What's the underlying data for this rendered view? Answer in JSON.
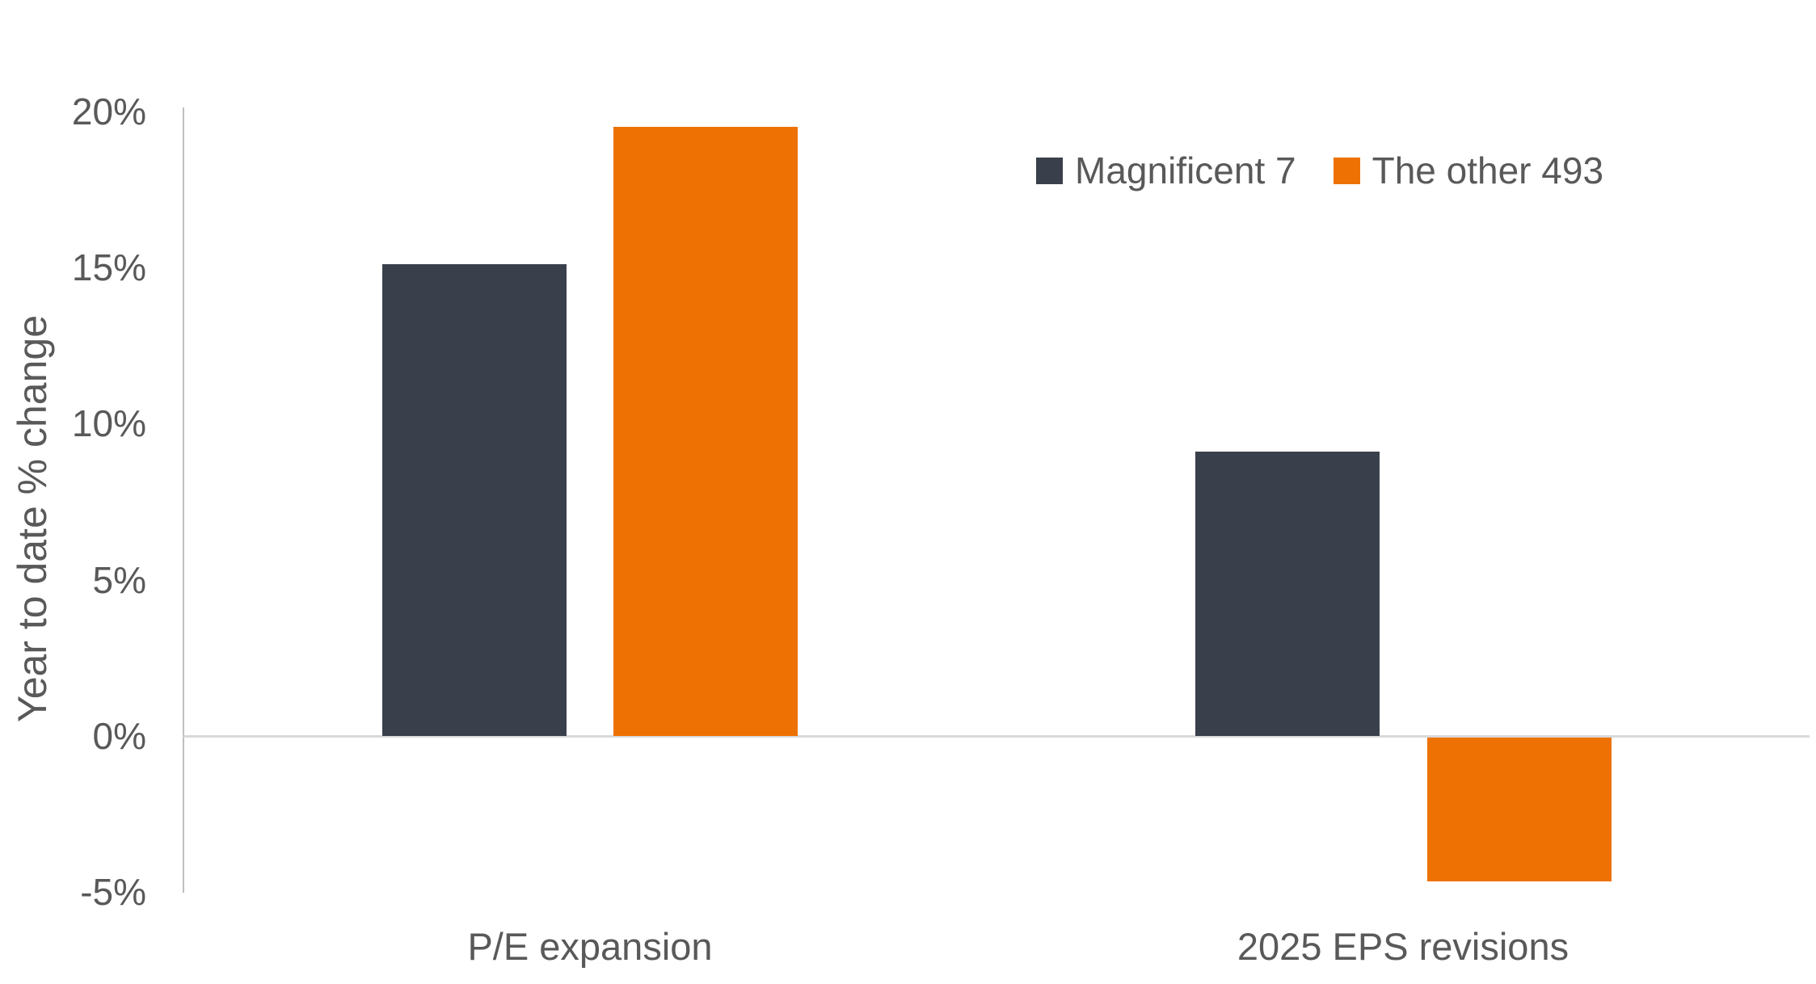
{
  "chart_data": {
    "type": "bar",
    "title": "",
    "categories": [
      "P/E expansion",
      "2025 EPS revisions"
    ],
    "series": [
      {
        "name": "Magnificent 7",
        "color": "#3a404b",
        "values": [
          15.1,
          9.1
        ]
      },
      {
        "name": "The other 493",
        "color": "#ed7203",
        "values": [
          19.5,
          -4.6
        ]
      }
    ],
    "xlabel": "",
    "ylabel": "Year to date % change",
    "ylim": [
      -5,
      20
    ],
    "y_ticks": [
      {
        "value": 20,
        "label": "20%"
      },
      {
        "value": 15,
        "label": "15%"
      },
      {
        "value": 10,
        "label": "10%"
      },
      {
        "value": 5,
        "label": "5%"
      },
      {
        "value": 0,
        "label": "0%"
      },
      {
        "value": -5,
        "label": "-5%"
      }
    ],
    "grid": "zero-line-only",
    "legend_position": "top-right"
  },
  "colors": {
    "text": "#595959",
    "axis_line": "#bfbfbf",
    "zero_line": "#d9d9d9",
    "background": "#ffffff"
  }
}
